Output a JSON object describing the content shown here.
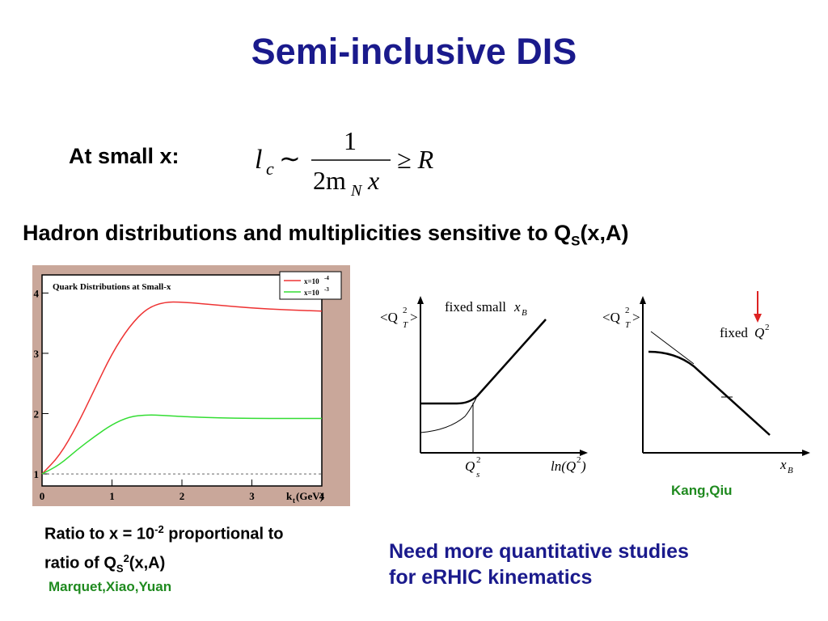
{
  "title": "Semi-inclusive DIS",
  "small_x_label": "At small x:",
  "formula": {
    "lhs": "l",
    "lhs_sub": "c",
    "rel": "∼",
    "num": "1",
    "den": "2m",
    "den_sub": "N",
    "den_tail": "x",
    "geq": "≥ R"
  },
  "hadron_line": {
    "text": "Hadron distributions and multiplicities sensitive to Q",
    "sub": "S",
    "tail": "(x,A)"
  },
  "left_chart": {
    "chart_data": {
      "type": "line",
      "title": "Quark Distributions at Small-x",
      "xlabel": "k",
      "xlabel_sub": "t",
      "xlabel_unit": "(GeV)",
      "xlim": [
        0,
        4
      ],
      "ylim": [
        0.8,
        4.3
      ],
      "xticks": [
        "0",
        "1",
        "2",
        "3",
        "4"
      ],
      "yticks": [
        "1",
        "2",
        "3",
        "4"
      ],
      "legend": [
        {
          "label": "x=10",
          "sup": "-4",
          "color": "#ee3333"
        },
        {
          "label": "x=10",
          "sup": "-3",
          "color": "#33dd33"
        }
      ],
      "series": [
        {
          "name": "x=10^-4",
          "color": "#ee3333",
          "x": [
            0,
            0.25,
            0.5,
            0.75,
            1.0,
            1.25,
            1.5,
            1.75,
            2.0,
            2.5,
            3.0,
            3.5,
            4.0
          ],
          "y": [
            1.0,
            1.3,
            1.8,
            2.4,
            3.0,
            3.45,
            3.75,
            3.85,
            3.85,
            3.8,
            3.75,
            3.72,
            3.7
          ]
        },
        {
          "name": "x=10^-3",
          "color": "#33dd33",
          "x": [
            0,
            0.25,
            0.5,
            0.75,
            1.0,
            1.25,
            1.5,
            1.75,
            2.0,
            2.5,
            3.0,
            3.5,
            4.0
          ],
          "y": [
            1.0,
            1.15,
            1.4,
            1.62,
            1.82,
            1.95,
            1.98,
            1.97,
            1.95,
            1.93,
            1.92,
            1.92,
            1.92
          ]
        }
      ],
      "reference_line": {
        "y": 1.0,
        "style": "dashed"
      },
      "grid": false,
      "legend_position": "top-right"
    }
  },
  "sketch_left": {
    "y_label": "<Q",
    "y_sup": "2",
    "y_sub": "T",
    "y_close": ">",
    "title": "fixed small",
    "title_var": "x",
    "title_var_sub": "B",
    "x_tick": "Q",
    "x_tick_sup": "2",
    "x_tick_sub": "s",
    "x_label": "ln(Q",
    "x_label_sup": "2",
    "x_label_close": ")"
  },
  "sketch_right": {
    "y_label": "<Q",
    "y_sup": "2",
    "y_sub": "T",
    "y_close": ">",
    "title": "fixed",
    "title_var": "Q",
    "title_var_sup": "2",
    "x_label": "x",
    "x_label_sub": "B"
  },
  "credits": {
    "right": "Kang,Qiu",
    "left": "Marquet,Xiao,Yuan"
  },
  "ratio_caption": {
    "line1_a": "Ratio to x = 10",
    "line1_sup": "-2",
    "line1_b": " proportional to",
    "line2_a": "ratio of Q",
    "line2_sub": "S",
    "line2_sup": "2",
    "line2_b": "(x,A)"
  },
  "need_text": {
    "line1": "Need more quantitative studies",
    "line2": "for eRHIC kinematics"
  },
  "colors": {
    "title": "#1a1a8c",
    "credit": "#1f8a1f",
    "frame_fill": "#c9a79a",
    "arrow": "#dd2222"
  }
}
